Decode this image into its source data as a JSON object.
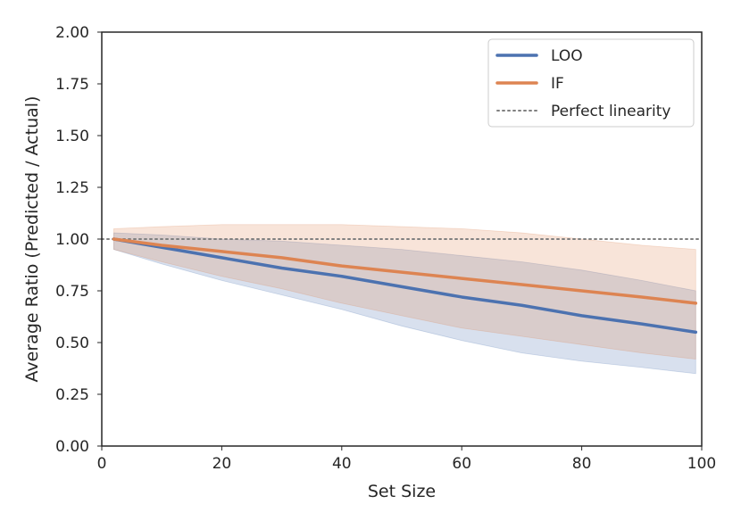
{
  "chart_data": {
    "type": "line",
    "xlabel": "Set Size",
    "ylabel": "Average Ratio (Predicted / Actual)",
    "xlim": [
      0,
      100
    ],
    "ylim": [
      0,
      2
    ],
    "x_ticks": [
      "0",
      "20",
      "40",
      "60",
      "80",
      "100"
    ],
    "y_ticks": [
      "0.00",
      "0.25",
      "0.50",
      "0.75",
      "1.00",
      "1.25",
      "1.50",
      "1.75",
      "2.00"
    ],
    "grid": false,
    "legend_position": "top-right",
    "reference_line": {
      "label": "Perfect linearity",
      "y": 1.0,
      "style": "dotted",
      "color": "#808080"
    },
    "series": [
      {
        "name": "LOO",
        "color": "#4c72b0",
        "points": [
          [
            2,
            1.0
          ],
          [
            10,
            0.96
          ],
          [
            20,
            0.91
          ],
          [
            30,
            0.86
          ],
          [
            40,
            0.82
          ],
          [
            50,
            0.77
          ],
          [
            60,
            0.72
          ],
          [
            70,
            0.68
          ],
          [
            80,
            0.63
          ],
          [
            90,
            0.59
          ],
          [
            99,
            0.55
          ]
        ],
        "band": [
          [
            2,
            0.95,
            1.03
          ],
          [
            10,
            0.88,
            1.02
          ],
          [
            20,
            0.8,
            1.0
          ],
          [
            30,
            0.73,
            0.99
          ],
          [
            40,
            0.66,
            0.97
          ],
          [
            50,
            0.58,
            0.95
          ],
          [
            60,
            0.51,
            0.92
          ],
          [
            70,
            0.45,
            0.89
          ],
          [
            80,
            0.41,
            0.85
          ],
          [
            90,
            0.38,
            0.8
          ],
          [
            99,
            0.35,
            0.75
          ]
        ]
      },
      {
        "name": "IF",
        "color": "#dd8452",
        "points": [
          [
            2,
            1.0
          ],
          [
            10,
            0.97
          ],
          [
            20,
            0.94
          ],
          [
            30,
            0.91
          ],
          [
            40,
            0.87
          ],
          [
            50,
            0.84
          ],
          [
            60,
            0.81
          ],
          [
            70,
            0.78
          ],
          [
            80,
            0.75
          ],
          [
            90,
            0.72
          ],
          [
            99,
            0.69
          ]
        ],
        "band": [
          [
            2,
            0.95,
            1.05
          ],
          [
            10,
            0.89,
            1.06
          ],
          [
            20,
            0.82,
            1.07
          ],
          [
            30,
            0.76,
            1.07
          ],
          [
            40,
            0.69,
            1.07
          ],
          [
            50,
            0.63,
            1.06
          ],
          [
            60,
            0.57,
            1.05
          ],
          [
            70,
            0.53,
            1.03
          ],
          [
            80,
            0.49,
            1.0
          ],
          [
            90,
            0.45,
            0.97
          ],
          [
            99,
            0.42,
            0.95
          ]
        ]
      }
    ]
  }
}
